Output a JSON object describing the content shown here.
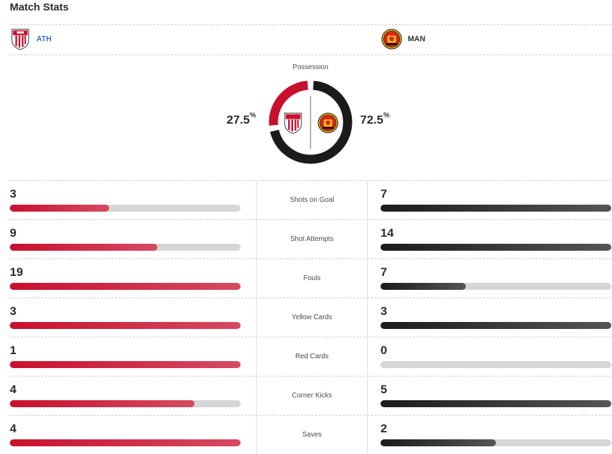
{
  "title": "Match Stats",
  "home": {
    "abbr": "ATH",
    "color": "#c8102e"
  },
  "away": {
    "abbr": "MAN",
    "color": "#1b1b1b"
  },
  "possession": {
    "label": "Possession",
    "home_pct": "27.5",
    "away_pct": "72.5",
    "suffix": "%",
    "home_value": 27.5,
    "away_value": 72.5
  },
  "stats": [
    {
      "label": "Shots on Goal",
      "home": "3",
      "away": "7",
      "home_fill": 0.43,
      "away_fill": 1.0
    },
    {
      "label": "Shot Attempts",
      "home": "9",
      "away": "14",
      "home_fill": 0.64,
      "away_fill": 1.0
    },
    {
      "label": "Fouls",
      "home": "19",
      "away": "7",
      "home_fill": 1.0,
      "away_fill": 0.37
    },
    {
      "label": "Yellow Cards",
      "home": "3",
      "away": "3",
      "home_fill": 1.0,
      "away_fill": 1.0
    },
    {
      "label": "Red Cards",
      "home": "1",
      "away": "0",
      "home_fill": 1.0,
      "away_fill": 0.0
    },
    {
      "label": "Corner Kicks",
      "home": "4",
      "away": "5",
      "home_fill": 0.8,
      "away_fill": 1.0
    },
    {
      "label": "Saves",
      "home": "4",
      "away": "2",
      "home_fill": 1.0,
      "away_fill": 0.5
    }
  ]
}
